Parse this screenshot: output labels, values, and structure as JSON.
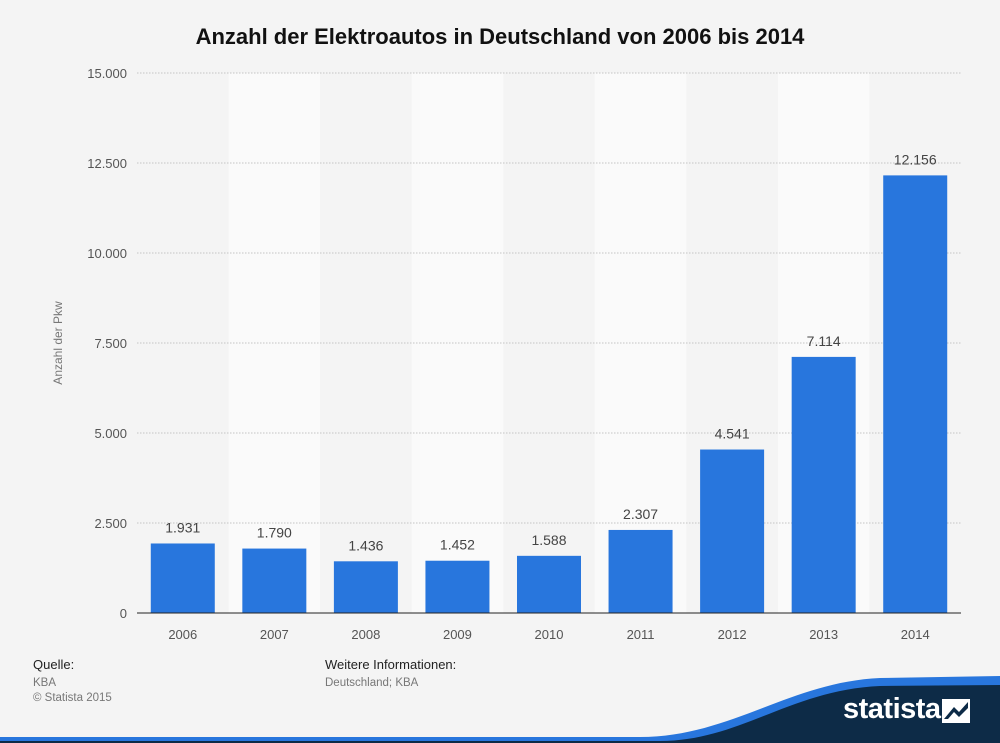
{
  "chart_data": {
    "type": "bar",
    "title": "Anzahl der Elektroautos in Deutschland von 2006 bis 2014",
    "xlabel": "",
    "ylabel": "Anzahl der Pkw",
    "categories": [
      "2006",
      "2007",
      "2008",
      "2009",
      "2010",
      "2011",
      "2012",
      "2013",
      "2014"
    ],
    "values": [
      1931,
      1790,
      1436,
      1452,
      1588,
      2307,
      4541,
      7114,
      12156
    ],
    "value_labels": [
      "1.931",
      "1.790",
      "1.436",
      "1.452",
      "1.588",
      "2.307",
      "4.541",
      "7.114",
      "12.156"
    ],
    "ylim": [
      0,
      15000
    ],
    "yticks": [
      0,
      2500,
      5000,
      7500,
      10000,
      12500,
      15000
    ],
    "ytick_labels": [
      "0",
      "2.500",
      "5.000",
      "7.500",
      "10.000",
      "12.500",
      "15.000"
    ],
    "grid": true,
    "legend": "none",
    "bar_color": "#2876dd"
  },
  "footer": {
    "source_label": "Quelle:",
    "source_value": "KBA",
    "copyright": "© Statista 2015",
    "info_label": "Weitere Informationen:",
    "info_value": "Deutschland; KBA"
  },
  "brand": {
    "name": "statista",
    "dark_color": "#0d2b47",
    "accent_color": "#2876dd"
  }
}
